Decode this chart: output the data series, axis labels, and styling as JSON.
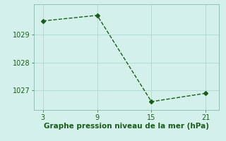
{
  "x": [
    3,
    9,
    15,
    21
  ],
  "y": [
    1029.5,
    1029.7,
    1026.6,
    1026.9
  ],
  "line_color": "#1a5c1a",
  "marker": "D",
  "marker_size": 3,
  "bg_color": "#d4f0eb",
  "grid_color": "#aed8d0",
  "xlabel": "Graphe pression niveau de la mer (hPa)",
  "xlabel_color": "#1a5c1a",
  "xlabel_fontsize": 7.5,
  "xlim": [
    2.0,
    22.5
  ],
  "ylim": [
    1026.3,
    1030.1
  ],
  "xticks": [
    3,
    9,
    15,
    21
  ],
  "yticks": [
    1027,
    1028,
    1029
  ],
  "tick_fontsize": 7,
  "tick_color": "#1a5c1a",
  "linestyle": "--",
  "linewidth": 1.0,
  "spine_color": "#8ab8b0"
}
